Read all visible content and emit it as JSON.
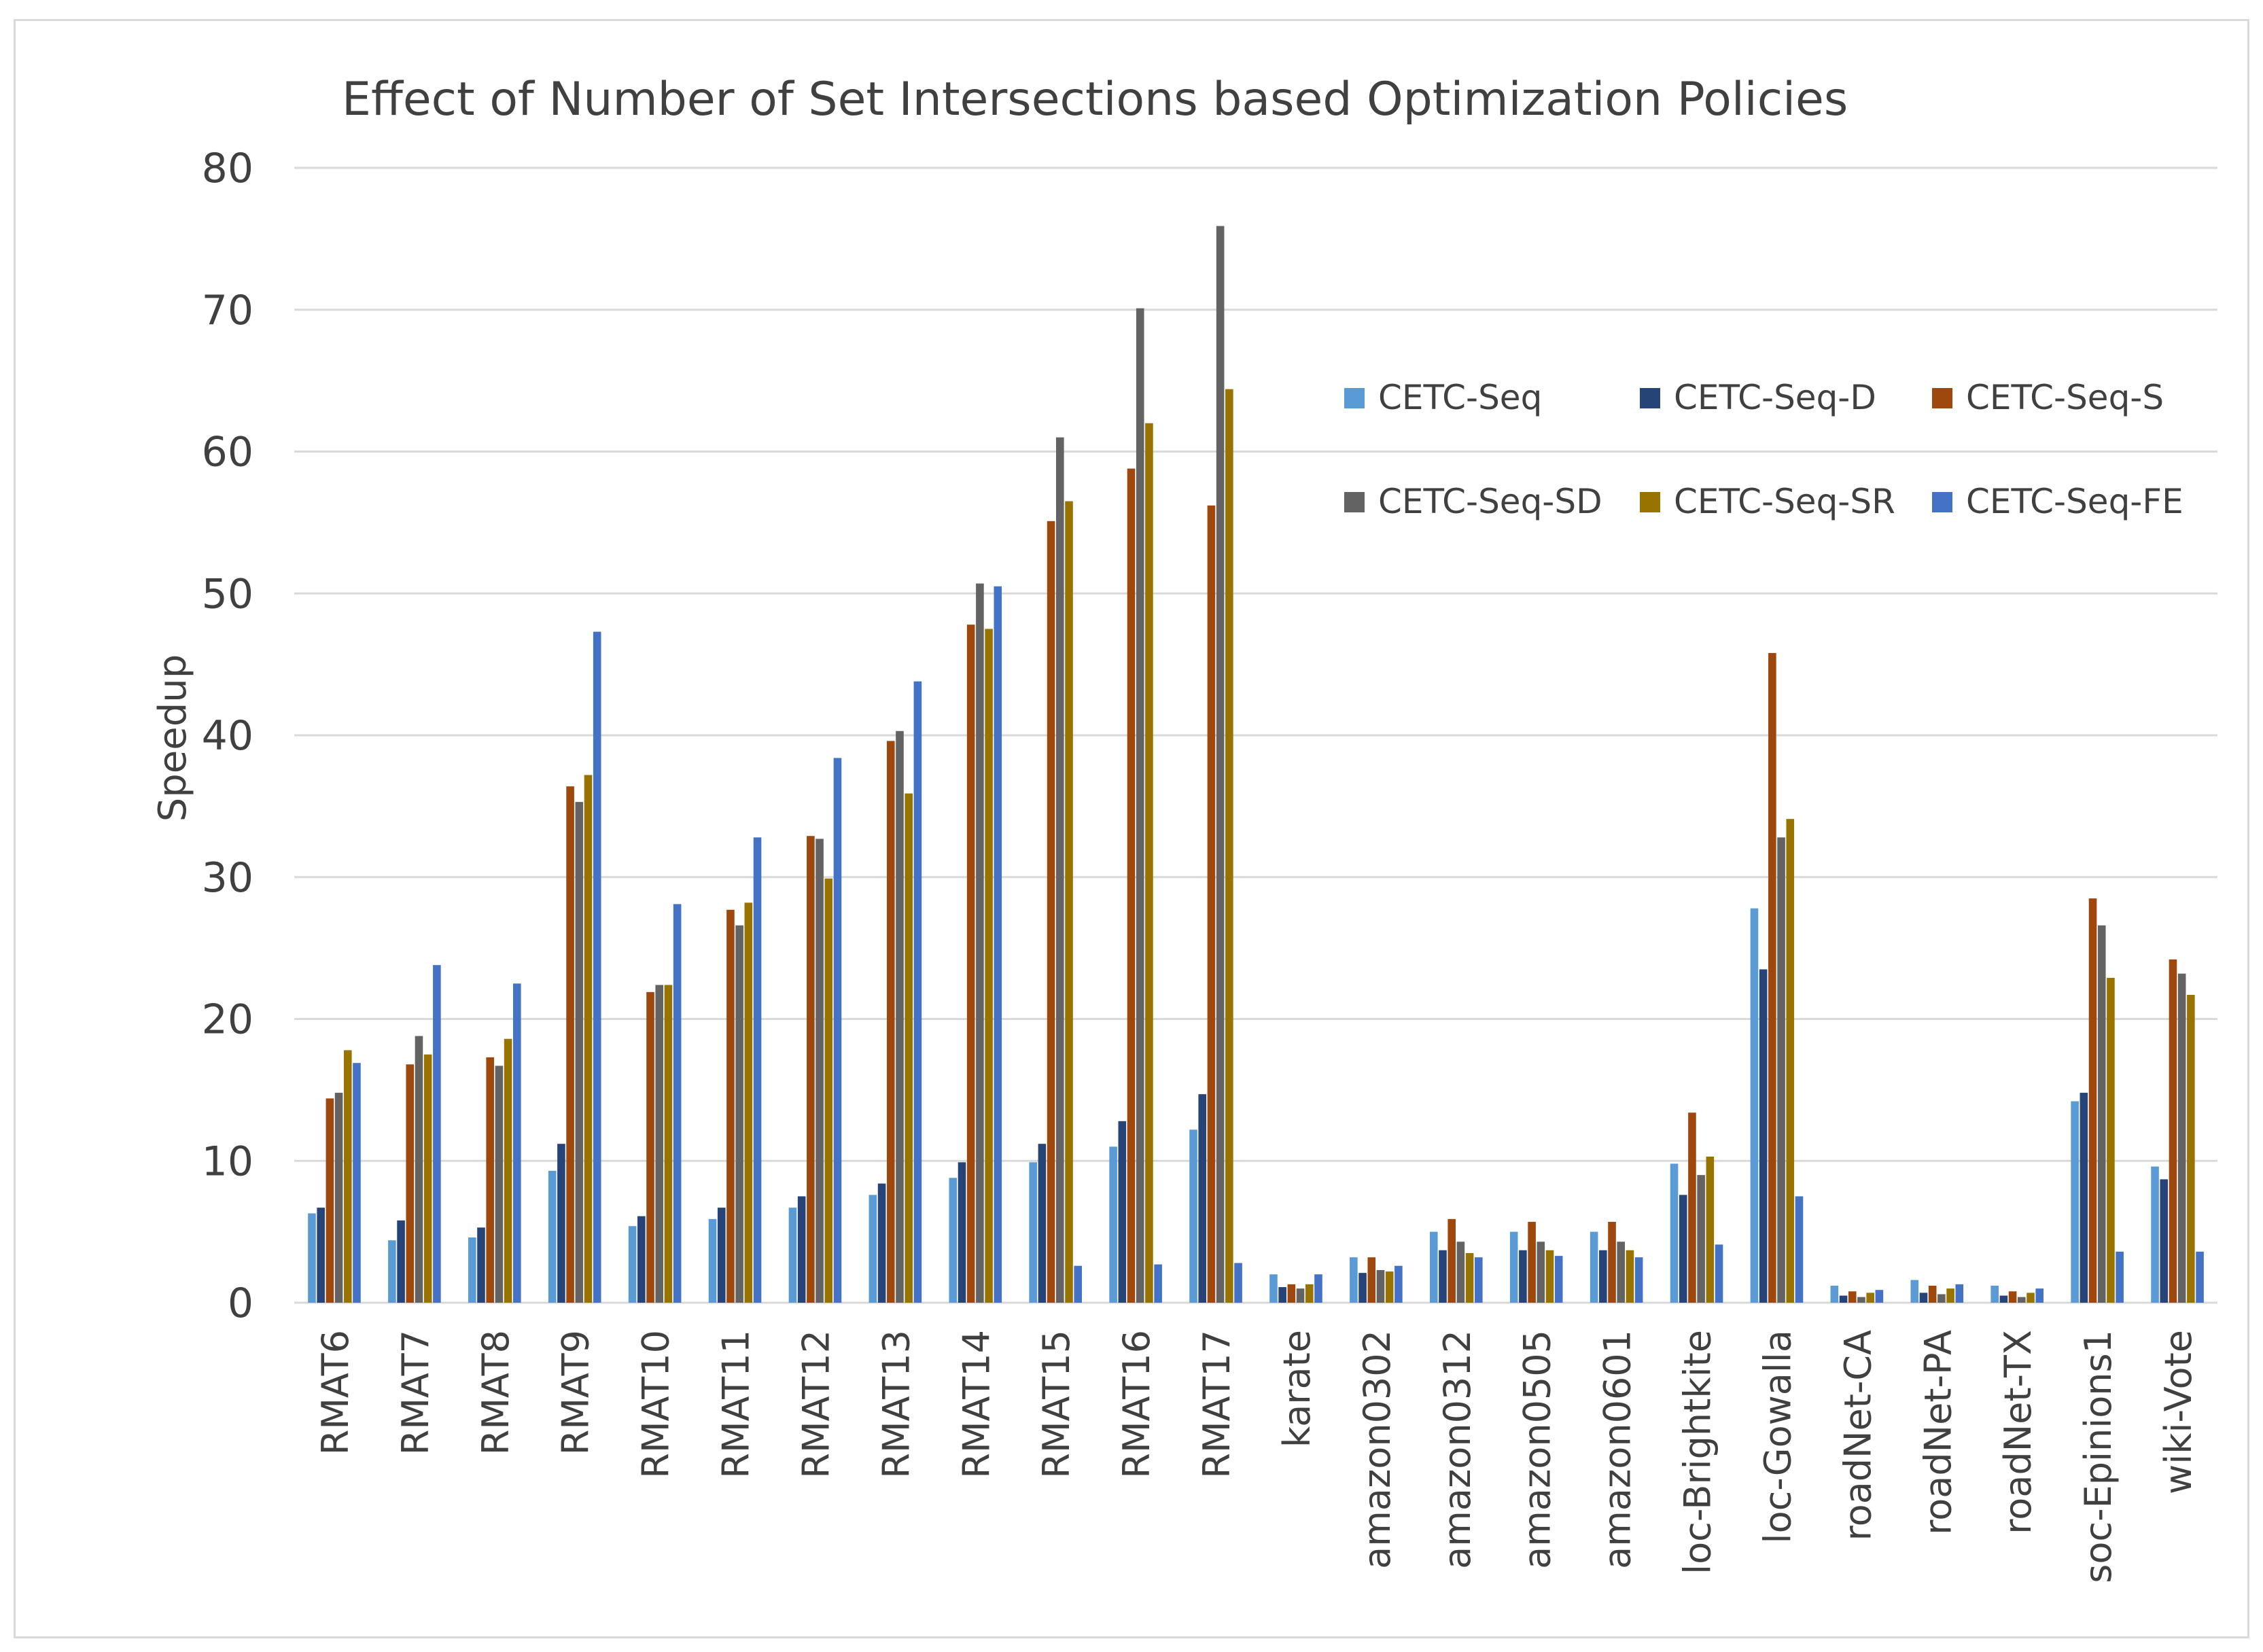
{
  "chart_data": {
    "type": "bar",
    "title": "Effect of Number of Set Intersections based Optimization Policies",
    "xlabel": "",
    "ylabel": "Speedup",
    "ylim": [
      0,
      80
    ],
    "yticks": [
      "0",
      "10",
      "20",
      "30",
      "40",
      "50",
      "60",
      "70",
      "80"
    ],
    "grid": true,
    "legend_position": "top-right",
    "categories": [
      "RMAT6",
      "RMAT7",
      "RMAT8",
      "RMAT9",
      "RMAT10",
      "RMAT11",
      "RMAT12",
      "RMAT13",
      "RMAT14",
      "RMAT15",
      "RMAT16",
      "RMAT17",
      "karate",
      "amazon0302",
      "amazon0312",
      "amazon0505",
      "amazon0601",
      "loc-Brightkite",
      "loc-Gowalla",
      "roadNet-CA",
      "roadNet-PA",
      "roadNet-TX",
      "soc-Epinions1",
      "wiki-Vote"
    ],
    "series": [
      {
        "name": "CETC-Seq",
        "color": "#5b9bd5",
        "values": [
          6.3,
          4.4,
          4.6,
          9.3,
          5.4,
          5.9,
          6.7,
          7.6,
          8.8,
          9.9,
          11.0,
          12.2,
          2.0,
          3.2,
          5.0,
          5.0,
          5.0,
          9.8,
          27.8,
          1.2,
          1.6,
          1.2,
          14.2,
          9.6
        ]
      },
      {
        "name": "CETC-Seq-D",
        "color": "#264478",
        "values": [
          6.7,
          5.8,
          5.3,
          11.2,
          6.1,
          6.7,
          7.5,
          8.4,
          9.9,
          11.2,
          12.8,
          14.7,
          1.1,
          2.1,
          3.7,
          3.7,
          3.7,
          7.6,
          23.5,
          0.5,
          0.7,
          0.5,
          14.8,
          8.7
        ]
      },
      {
        "name": "CETC-Seq-S",
        "color": "#9e480e",
        "values": [
          14.4,
          16.8,
          17.3,
          36.4,
          21.9,
          27.7,
          32.9,
          39.6,
          47.8,
          55.1,
          58.8,
          56.2,
          1.3,
          3.2,
          5.9,
          5.7,
          5.7,
          13.4,
          45.8,
          0.8,
          1.2,
          0.8,
          28.5,
          24.2
        ]
      },
      {
        "name": "CETC-Seq-SD",
        "color": "#636363",
        "values": [
          14.8,
          18.8,
          16.7,
          35.3,
          22.4,
          26.6,
          32.7,
          40.3,
          50.7,
          61.0,
          70.1,
          75.9,
          1.0,
          2.3,
          4.3,
          4.3,
          4.3,
          9.0,
          32.8,
          0.4,
          0.6,
          0.4,
          26.6,
          23.2
        ]
      },
      {
        "name": "CETC-Seq-SR",
        "color": "#997300",
        "values": [
          17.8,
          17.5,
          18.6,
          37.2,
          22.4,
          28.2,
          29.9,
          35.9,
          47.5,
          56.5,
          62.0,
          64.4,
          1.3,
          2.2,
          3.5,
          3.7,
          3.7,
          10.3,
          34.1,
          0.7,
          1.0,
          0.7,
          22.9,
          21.7
        ]
      },
      {
        "name": "CETC-Seq-FE",
        "color": "#4472c4",
        "values": [
          16.9,
          23.8,
          22.5,
          47.3,
          28.1,
          32.8,
          38.4,
          43.8,
          50.5,
          2.6,
          2.7,
          2.8,
          2.0,
          2.6,
          3.2,
          3.3,
          3.2,
          4.1,
          7.5,
          0.9,
          1.3,
          1.0,
          3.6,
          3.6
        ]
      }
    ]
  }
}
